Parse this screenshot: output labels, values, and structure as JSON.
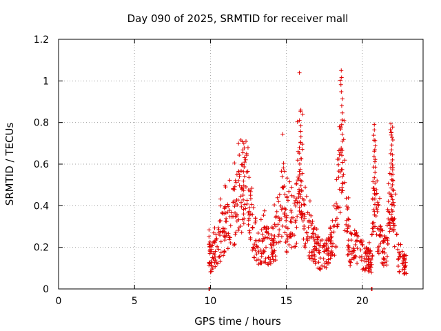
{
  "chart_data": {
    "type": "scatter",
    "title": "Day 090 of 2025, SRMTID for receiver mall",
    "xlabel": "GPS time / hours",
    "ylabel": "SRMTID / TECUs",
    "xlim": [
      0,
      24
    ],
    "ylim": [
      0,
      1.2
    ],
    "xticks": [
      0,
      5,
      10,
      15,
      20
    ],
    "xtick_labels": [
      "0",
      "5",
      "10",
      "15",
      "20"
    ],
    "yticks": [
      0,
      0.2,
      0.4,
      0.6,
      0.8,
      1.0,
      1.2
    ],
    "ytick_labels": [
      "0",
      "0.2",
      "0.4",
      "0.6",
      "0.8",
      "1",
      "1.2"
    ],
    "grid": true,
    "marker": "+",
    "color": "#e00000",
    "series": [
      {
        "name": "SRMTID",
        "anchors_x": [
          9.9,
          10.0,
          10.3,
          10.7,
          11.0,
          11.3,
          11.6,
          12.0,
          12.3,
          12.6,
          12.9,
          13.2,
          13.6,
          14.0,
          14.3,
          14.5,
          14.8,
          15.0,
          15.3,
          15.6,
          15.9,
          16.2,
          16.6,
          17.0,
          17.4,
          17.8,
          18.2,
          18.5,
          18.7,
          18.9,
          19.2,
          19.6,
          20.0,
          20.3,
          20.6,
          20.8,
          21.0,
          21.3,
          21.6,
          21.9,
          22.1,
          22.4,
          22.7,
          22.9
        ],
        "anchors_y": [
          0.2,
          0.14,
          0.17,
          0.25,
          0.28,
          0.3,
          0.35,
          0.45,
          0.6,
          0.4,
          0.25,
          0.18,
          0.22,
          0.19,
          0.25,
          0.3,
          0.45,
          0.3,
          0.35,
          0.3,
          0.65,
          0.35,
          0.25,
          0.18,
          0.16,
          0.2,
          0.3,
          0.5,
          0.9,
          0.35,
          0.2,
          0.2,
          0.16,
          0.15,
          0.14,
          0.55,
          0.3,
          0.2,
          0.18,
          0.6,
          0.3,
          0.15,
          0.12,
          0.12
        ],
        "point_count": 900,
        "peaks": [
          {
            "x": 12.2,
            "y": 0.7
          },
          {
            "x": 15.9,
            "y": 0.81
          },
          {
            "x": 18.65,
            "y": 1.05
          },
          {
            "x": 20.8,
            "y": 0.79
          },
          {
            "x": 21.95,
            "y": 0.74
          }
        ],
        "zero_points_x": [
          9.9,
          20.6
        ]
      }
    ]
  }
}
